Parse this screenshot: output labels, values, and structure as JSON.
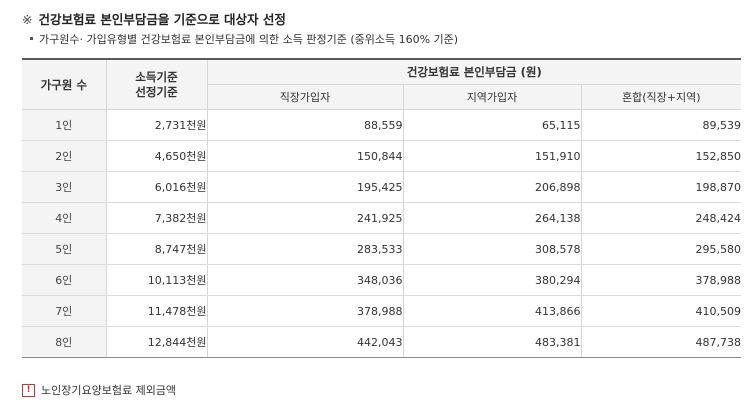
{
  "heading": {
    "mark": "※",
    "title": "건강보험료 본인부담금을 기준으로 대상자 선정",
    "subtitle": "가구원수· 가입유형별 건강보험료 본인부담금에 의한 소득 판정기준 (중위소득 160% 기준)"
  },
  "table": {
    "col_household": "가구원 수",
    "col_income_line1": "소득기준",
    "col_income_line2": "선정기준",
    "col_group": "건강보험료 본인부담금 (원)",
    "subcols": [
      "직장가입자",
      "지역가입자",
      "혼합(직장+지역)"
    ],
    "rows": [
      {
        "members": "1인",
        "income": "2,731천원",
        "workplace": "88,559",
        "regional": "65,115",
        "mixed": "89,539"
      },
      {
        "members": "2인",
        "income": "4,650천원",
        "workplace": "150,844",
        "regional": "151,910",
        "mixed": "152,850"
      },
      {
        "members": "3인",
        "income": "6,016천원",
        "workplace": "195,425",
        "regional": "206,898",
        "mixed": "198,870"
      },
      {
        "members": "4인",
        "income": "7,382천원",
        "workplace": "241,925",
        "regional": "264,138",
        "mixed": "248,424"
      },
      {
        "members": "5인",
        "income": "8,747천원",
        "workplace": "283,533",
        "regional": "308,578",
        "mixed": "295,580"
      },
      {
        "members": "6인",
        "income": "10,113천원",
        "workplace": "348,036",
        "regional": "380,294",
        "mixed": "378,988"
      },
      {
        "members": "7인",
        "income": "11,478천원",
        "workplace": "378,988",
        "regional": "413,866",
        "mixed": "410,509"
      },
      {
        "members": "8인",
        "income": "12,844천원",
        "workplace": "442,043",
        "regional": "483,381",
        "mixed": "487,738"
      }
    ]
  },
  "note": {
    "icon": "!",
    "text": "노인장기요양보험료 제외금액"
  }
}
